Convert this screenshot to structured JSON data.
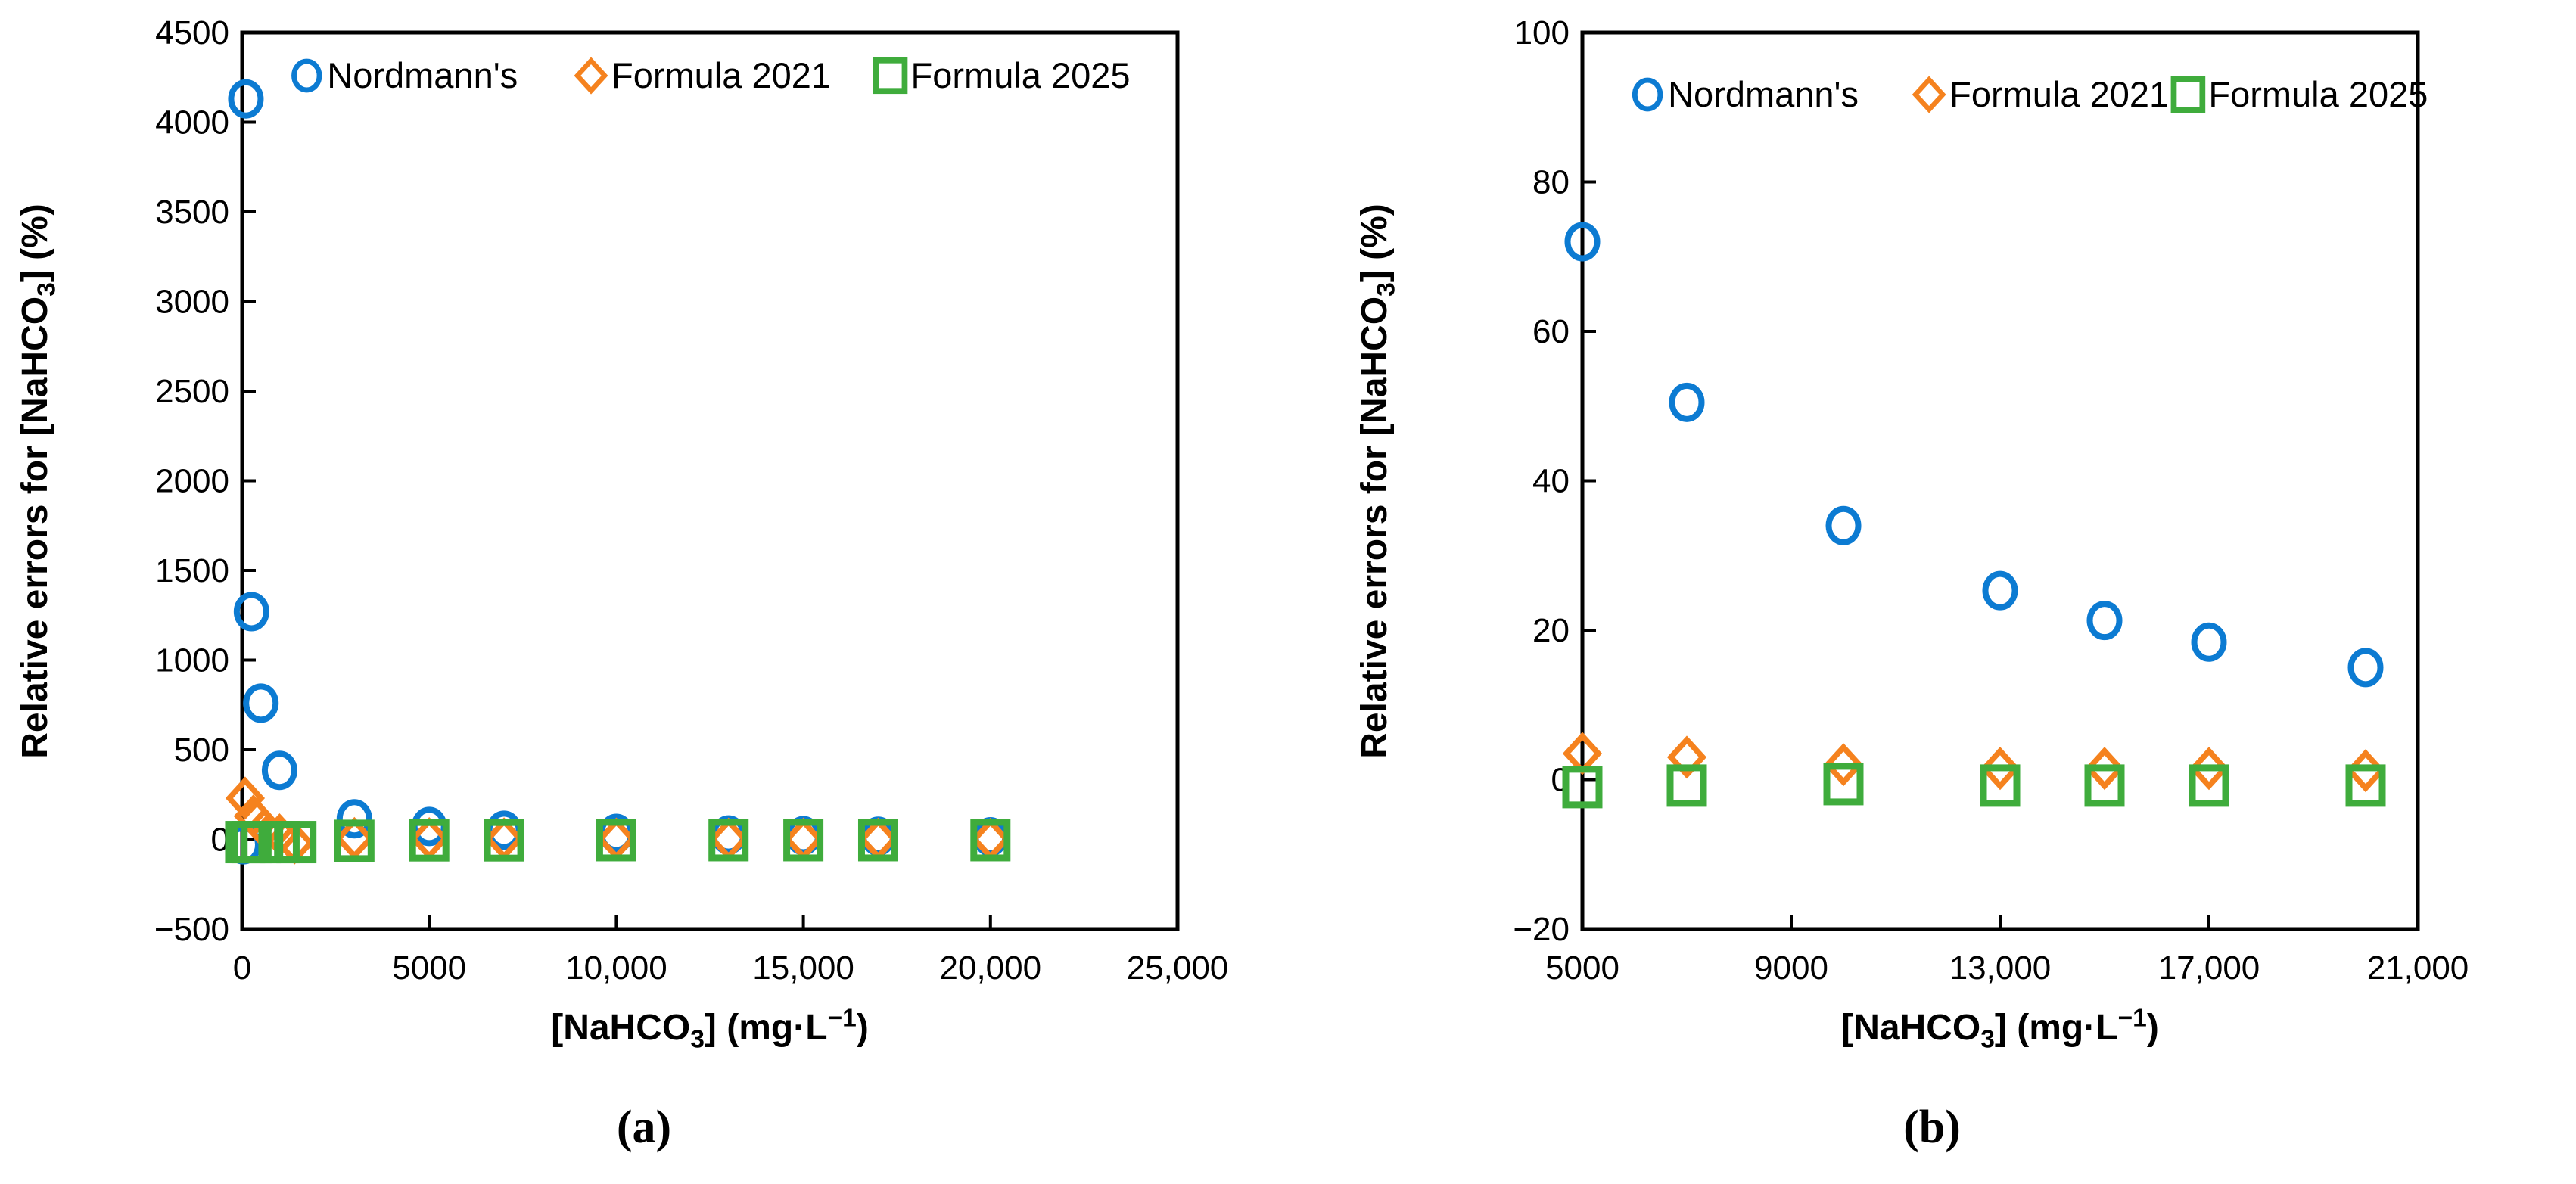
{
  "figure": {
    "background": "#ffffff",
    "frame_color": "#000000",
    "text_color": "#000000"
  },
  "chart_data": [
    {
      "id": "a",
      "type": "scatter",
      "caption": "(a)",
      "xlabel_parts": [
        {
          "text": "[NaHCO"
        },
        {
          "text": "3",
          "script": "sub"
        },
        {
          "text": "] (mg·L"
        },
        {
          "text": "−1",
          "script": "sup"
        },
        {
          "text": ")"
        }
      ],
      "ylabel_parts": [
        {
          "text": "Relative errors for [NaHCO"
        },
        {
          "text": "3",
          "script": "sub"
        },
        {
          "text": "] (%)"
        }
      ],
      "xlim": [
        0,
        25000
      ],
      "ylim": [
        -500,
        4500
      ],
      "grid": false,
      "legend_position": "top-inside",
      "xticks": [
        {
          "value": 0,
          "label": "0"
        },
        {
          "value": 5000,
          "label": "5000"
        },
        {
          "value": 10000,
          "label": "10,000"
        },
        {
          "value": 15000,
          "label": "15,000"
        },
        {
          "value": 20000,
          "label": "20,000"
        },
        {
          "value": 25000,
          "label": "25,000"
        }
      ],
      "yticks": [
        {
          "value": 4500,
          "label": "4500"
        },
        {
          "value": 4000,
          "label": "4000"
        },
        {
          "value": 3500,
          "label": "3500"
        },
        {
          "value": 3000,
          "label": "3000"
        },
        {
          "value": 2500,
          "label": "2500"
        },
        {
          "value": 2000,
          "label": "2000"
        },
        {
          "value": 1500,
          "label": "1500"
        },
        {
          "value": 1000,
          "label": "1000"
        },
        {
          "value": 500,
          "label": "500"
        },
        {
          "value": 0,
          "label": "0"
        },
        {
          "value": -500,
          "label": "−500"
        }
      ],
      "legend": [
        "Nordmann's",
        "Formula 2021",
        "Formula 2025"
      ],
      "series": [
        {
          "name": "Nordmann's",
          "marker": "circle",
          "color": "#0C7BD2",
          "points": [
            [
              30,
              -30
            ],
            [
              100,
              4130
            ],
            [
              250,
              1270
            ],
            [
              500,
              760
            ],
            [
              1000,
              385
            ],
            [
              3000,
              115
            ],
            [
              5000,
              72
            ],
            [
              7000,
              51
            ],
            [
              10000,
              34
            ],
            [
              13000,
              25
            ],
            [
              15000,
              21
            ],
            [
              17000,
              18
            ],
            [
              20000,
              15
            ]
          ]
        },
        {
          "name": "Formula 2021",
          "marker": "diamond",
          "color": "#F5821E",
          "points": [
            [
              80,
              230
            ],
            [
              300,
              130
            ],
            [
              600,
              60
            ],
            [
              1000,
              25
            ],
            [
              1400,
              -20
            ],
            [
              3000,
              5
            ],
            [
              5000,
              4
            ],
            [
              7000,
              3
            ],
            [
              10000,
              2
            ],
            [
              13000,
              1.5
            ],
            [
              15000,
              1.5
            ],
            [
              17000,
              1.3
            ],
            [
              20000,
              1
            ]
          ]
        },
        {
          "name": "Formula 2025",
          "marker": "square",
          "color": "#3FAC3C",
          "points": [
            [
              80,
              -15
            ],
            [
              250,
              -15
            ],
            [
              500,
              -15
            ],
            [
              1000,
              -15
            ],
            [
              1450,
              -15
            ],
            [
              3000,
              -8
            ],
            [
              5000,
              -5
            ],
            [
              7000,
              -5
            ],
            [
              10000,
              -4
            ],
            [
              13000,
              -4
            ],
            [
              15000,
              -4
            ],
            [
              17000,
              -4
            ],
            [
              20000,
              -4
            ]
          ]
        }
      ]
    },
    {
      "id": "b",
      "type": "scatter",
      "caption": "(b)",
      "xlabel_parts": [
        {
          "text": "[NaHCO"
        },
        {
          "text": "3",
          "script": "sub"
        },
        {
          "text": "] (mg·L"
        },
        {
          "text": "−1",
          "script": "sup"
        },
        {
          "text": ")"
        }
      ],
      "ylabel_parts": [
        {
          "text": "Relative errors for [NaHCO"
        },
        {
          "text": "3",
          "script": "sub"
        },
        {
          "text": "] (%)"
        }
      ],
      "xlim": [
        5000,
        21000
      ],
      "ylim": [
        -20,
        100
      ],
      "grid": false,
      "legend_position": "top-inside",
      "xticks": [
        {
          "value": 5000,
          "label": "5000"
        },
        {
          "value": 9000,
          "label": "9000"
        },
        {
          "value": 13000,
          "label": "13,000"
        },
        {
          "value": 17000,
          "label": "17,000"
        },
        {
          "value": 21000,
          "label": "21,000"
        }
      ],
      "yticks": [
        {
          "value": 100,
          "label": "100"
        },
        {
          "value": 80,
          "label": "80"
        },
        {
          "value": 60,
          "label": "60"
        },
        {
          "value": 40,
          "label": "40"
        },
        {
          "value": 20,
          "label": "20"
        },
        {
          "value": 0,
          "label": "0"
        },
        {
          "value": -20,
          "label": "−20"
        }
      ],
      "legend": [
        "Nordmann's",
        "Formula 2021",
        "Formula 2025"
      ],
      "series": [
        {
          "name": "Nordmann's",
          "marker": "circle",
          "color": "#0C7BD2",
          "points": [
            [
              5000,
              72
            ],
            [
              7000,
              50.5
            ],
            [
              10000,
              34
            ],
            [
              13000,
              25.3
            ],
            [
              15000,
              21.3
            ],
            [
              17000,
              18.4
            ],
            [
              20000,
              15
            ]
          ]
        },
        {
          "name": "Formula 2021",
          "marker": "diamond",
          "color": "#F5821E",
          "points": [
            [
              5000,
              3.5
            ],
            [
              7000,
              3
            ],
            [
              10000,
              2
            ],
            [
              13000,
              1.5
            ],
            [
              15000,
              1.5
            ],
            [
              17000,
              1.5
            ],
            [
              20000,
              1.2
            ]
          ]
        },
        {
          "name": "Formula 2025",
          "marker": "square",
          "color": "#3FAC3C",
          "points": [
            [
              5000,
              -1
            ],
            [
              7000,
              -0.8
            ],
            [
              10000,
              -0.6
            ],
            [
              13000,
              -0.8
            ],
            [
              15000,
              -0.8
            ],
            [
              17000,
              -0.8
            ],
            [
              20000,
              -0.8
            ]
          ]
        }
      ]
    }
  ]
}
